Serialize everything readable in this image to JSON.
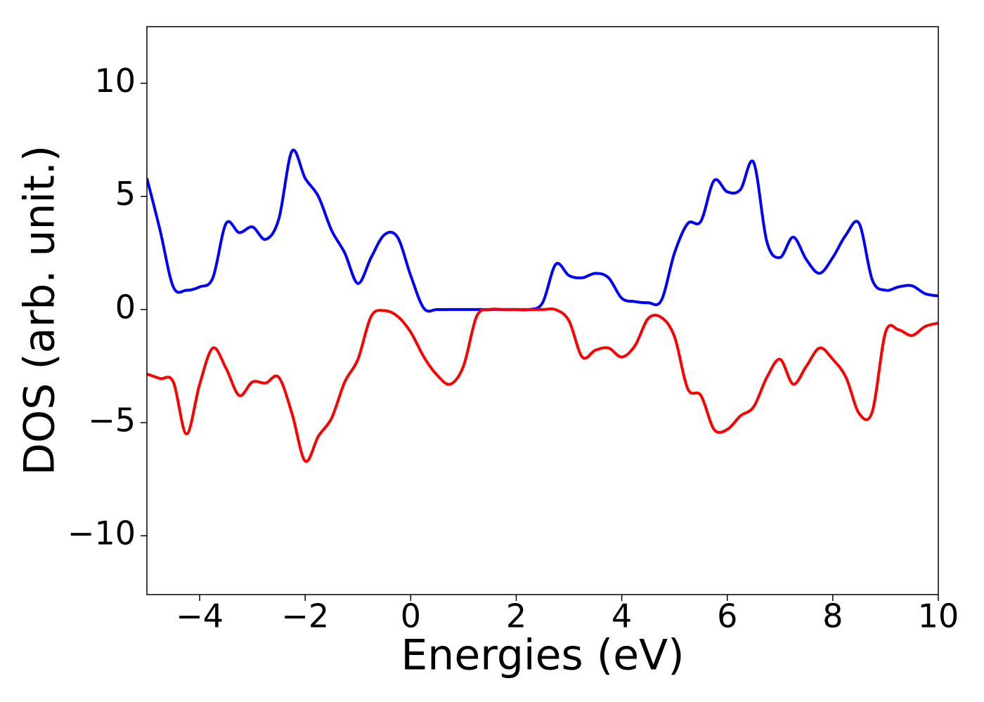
{
  "chart_data": {
    "type": "line",
    "xlabel": "Energies (eV)",
    "ylabel": "DOS (arb. unit.)",
    "x": [
      -5,
      -4.75,
      -4.5,
      -4.25,
      -4,
      -3.75,
      -3.5,
      -3.25,
      -3,
      -2.75,
      -2.5,
      -2.25,
      -2,
      -1.75,
      -1.5,
      -1.25,
      -1,
      -0.75,
      -0.5,
      -0.25,
      0,
      0.25,
      0.5,
      0.75,
      1,
      1.25,
      1.5,
      1.75,
      2,
      2.25,
      2.5,
      2.75,
      3,
      3.25,
      3.5,
      3.75,
      4,
      4.25,
      4.5,
      4.75,
      5,
      5.25,
      5.5,
      5.75,
      6,
      6.25,
      6.5,
      6.75,
      7,
      7.25,
      7.5,
      7.75,
      8,
      8.25,
      8.5,
      8.75,
      9,
      9.25,
      9.5,
      9.75,
      10
    ],
    "series": [
      {
        "color": "#0000ff",
        "values": [
          5.8,
          3.5,
          1.0,
          0.85,
          1.0,
          1.4,
          3.8,
          3.4,
          3.65,
          3.1,
          4.0,
          7.0,
          5.8,
          5.0,
          3.5,
          2.5,
          1.15,
          2.3,
          3.3,
          3.2,
          1.5,
          0.05,
          0,
          0,
          0,
          0,
          0,
          0,
          0,
          0,
          0.3,
          2.0,
          1.5,
          1.4,
          1.6,
          1.4,
          0.5,
          0.35,
          0.3,
          0.4,
          2.5,
          3.8,
          3.9,
          5.7,
          5.2,
          5.3,
          6.5,
          3.0,
          2.3,
          3.2,
          2.2,
          1.6,
          2.3,
          3.3,
          3.8,
          1.3,
          0.85,
          1.0,
          1.05,
          0.7,
          0.6
        ]
      },
      {
        "color": "#ff0000",
        "values": [
          -2.85,
          -3.05,
          -3.2,
          -5.5,
          -3.3,
          -1.7,
          -2.6,
          -3.8,
          -3.2,
          -3.25,
          -3.0,
          -4.6,
          -6.7,
          -5.6,
          -4.8,
          -3.2,
          -2.2,
          -0.3,
          -0.05,
          -0.3,
          -1.0,
          -2.1,
          -2.9,
          -3.3,
          -2.5,
          -0.3,
          0,
          0,
          0,
          0,
          0,
          -0.01,
          -0.5,
          -2.1,
          -1.8,
          -1.7,
          -2.1,
          -1.6,
          -0.4,
          -0.35,
          -1.2,
          -3.5,
          -3.8,
          -5.3,
          -5.3,
          -4.7,
          -4.3,
          -3.0,
          -2.2,
          -3.3,
          -2.5,
          -1.7,
          -2.2,
          -3.0,
          -4.6,
          -4.5,
          -1.0,
          -0.9,
          -1.15,
          -0.75,
          -0.6
        ]
      }
    ],
    "xlim": [
      -5,
      10
    ],
    "xticks": [
      {
        "value": -4,
        "label": "−4"
      },
      {
        "value": -2,
        "label": "−2"
      },
      0,
      2,
      4,
      6,
      8,
      10
    ],
    "ylim": [
      -12.6,
      12.5
    ],
    "yticks": [
      {
        "value": -10,
        "label": "−10"
      },
      {
        "value": -5,
        "label": "−5"
      },
      0,
      5,
      10
    ],
    "grid": false
  }
}
